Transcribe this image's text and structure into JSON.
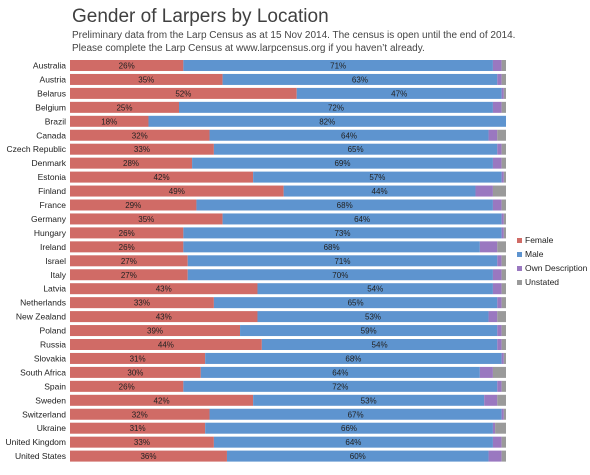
{
  "header": {
    "title": "Gender of Larpers by Location",
    "subtitle_line1": "Preliminary data from the Larp Census as at 15 Nov 2014. The census is open until the end of 2014.",
    "subtitle_line2": "Please complete the Larp Census at www.larpcensus.org if you haven’t already."
  },
  "chart_data": {
    "type": "bar",
    "orientation": "horizontal",
    "stacked": true,
    "normalized": true,
    "title": "Gender of Larpers by Location",
    "xlim": [
      0,
      100
    ],
    "legend_position": "right",
    "colors": {
      "Female": "#d06b66",
      "Male": "#5e94cf",
      "Own Description": "#9a78c0",
      "Unstated": "#9a9a9a"
    },
    "categories": [
      "Australia",
      "Austria",
      "Belarus",
      "Belgium",
      "Brazil",
      "Canada",
      "Czech Republic",
      "Denmark",
      "Estonia",
      "Finland",
      "France",
      "Germany",
      "Hungary",
      "Ireland",
      "Israel",
      "Italy",
      "Latvia",
      "Netherlands",
      "New Zealand",
      "Poland",
      "Russia",
      "Slovakia",
      "South Africa",
      "Spain",
      "Sweden",
      "Switzerland",
      "Ukraine",
      "United Kingdom",
      "United States"
    ],
    "series": [
      {
        "name": "Female",
        "values": [
          26,
          35,
          52,
          25,
          18,
          32,
          33,
          28,
          42,
          49,
          29,
          35,
          26,
          26,
          27,
          27,
          43,
          33,
          43,
          39,
          44,
          31,
          30,
          26,
          42,
          32,
          31,
          33,
          36
        ]
      },
      {
        "name": "Male",
        "values": [
          71,
          63,
          47,
          72,
          82,
          64,
          65,
          69,
          57,
          44,
          68,
          64,
          73,
          68,
          71,
          70,
          54,
          65,
          53,
          59,
          54,
          68,
          64,
          72,
          53,
          67,
          66,
          64,
          60
        ]
      },
      {
        "name": "Own Description",
        "values": [
          2,
          1,
          0.5,
          2,
          0,
          2,
          1,
          2,
          0.5,
          4,
          2,
          0.5,
          0.5,
          4,
          1,
          2,
          2,
          1,
          2,
          1,
          1,
          0.5,
          3,
          1,
          3,
          0.5,
          0.5,
          2,
          3
        ]
      },
      {
        "name": "Unstated",
        "values": [
          1,
          1,
          0.5,
          1,
          0,
          2,
          1,
          1,
          0.5,
          3,
          1,
          0.5,
          0.5,
          2,
          1,
          1,
          1,
          1,
          2,
          1,
          1,
          0.5,
          3,
          1,
          2,
          0.5,
          2.5,
          1,
          1
        ]
      }
    ],
    "show_labels_for": [
      "Female",
      "Male"
    ],
    "label_suffix": "%"
  }
}
